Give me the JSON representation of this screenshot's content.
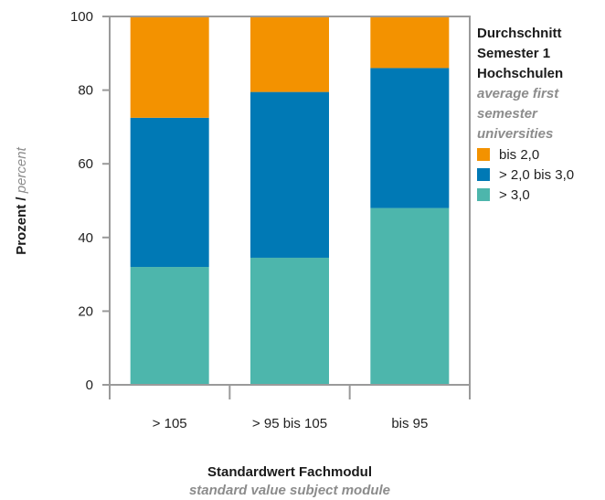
{
  "chart_data": {
    "type": "bar",
    "stacked": true,
    "categories": [
      "> 105",
      "> 95 bis 105",
      "bis 95"
    ],
    "series": [
      {
        "name": "> 3,0",
        "values": [
          32,
          34.5,
          48
        ],
        "color": "#4db6ac"
      },
      {
        "name": "> 2,0 bis 3,0",
        "values": [
          40.5,
          45,
          38
        ],
        "color": "#0079b5"
      },
      {
        "name": "bis 2,0",
        "values": [
          27.5,
          20.5,
          14
        ],
        "color": "#f39200"
      }
    ],
    "ylim": [
      0,
      100
    ],
    "yticks": [
      0,
      20,
      40,
      60,
      80,
      100
    ],
    "ylabel": {
      "main": "Prozent",
      "sep": " / ",
      "sub": "percent"
    },
    "xlabel": {
      "main": "Standardwert Fachmodul",
      "sub": "standard value subject module"
    },
    "legend": {
      "title": [
        "Durchschnitt",
        "Semester 1",
        "Hochschulen"
      ],
      "subtitle": [
        "average first",
        "semester",
        "universities"
      ],
      "order": [
        2,
        1,
        0
      ],
      "placement": "right"
    },
    "grid": false
  }
}
